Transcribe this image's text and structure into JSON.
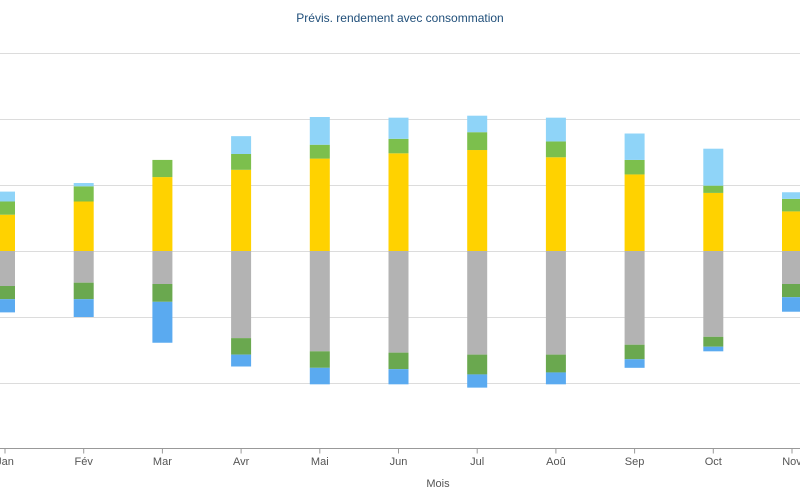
{
  "chart_data": {
    "type": "bar",
    "stacked": true,
    "title": "Prévis. rendement avec consommation",
    "xlabel": "Mois",
    "ylabel": "",
    "categories": [
      "Jan",
      "Fév",
      "Mar",
      "Avr",
      "Mai",
      "Jun",
      "Jul",
      "Aoû",
      "Sep",
      "Oct",
      "Nov"
    ],
    "ylim": [
      -3,
      3
    ],
    "grid": true,
    "legend": "none",
    "positive_series": [
      {
        "color": "#ffd200",
        "values": [
          0.55,
          0.75,
          1.12,
          1.23,
          1.4,
          1.48,
          1.53,
          1.42,
          1.16,
          0.88,
          0.6
        ]
      },
      {
        "color": "#7cbf4d",
        "values": [
          0.2,
          0.23,
          0.26,
          0.24,
          0.21,
          0.22,
          0.27,
          0.24,
          0.22,
          0.11,
          0.19
        ]
      },
      {
        "color": "#8fd4f8",
        "values": [
          0.15,
          0.05,
          0.0,
          0.27,
          0.42,
          0.32,
          0.25,
          0.36,
          0.4,
          0.56,
          0.1
        ]
      }
    ],
    "negative_series": [
      {
        "color": "#b3b3b3",
        "values": [
          -0.53,
          -0.48,
          -0.5,
          -1.32,
          -1.52,
          -1.54,
          -1.57,
          -1.57,
          -1.42,
          -1.3,
          -0.5
        ]
      },
      {
        "color": "#6aa84f",
        "values": [
          -0.2,
          -0.25,
          -0.27,
          -0.25,
          -0.25,
          -0.25,
          -0.3,
          -0.27,
          -0.22,
          -0.15,
          -0.2
        ]
      },
      {
        "color": "#5aaaf0",
        "values": [
          -0.2,
          -0.27,
          -0.62,
          -0.18,
          -0.25,
          -0.23,
          -0.2,
          -0.18,
          -0.13,
          -0.07,
          -0.22
        ]
      }
    ]
  }
}
